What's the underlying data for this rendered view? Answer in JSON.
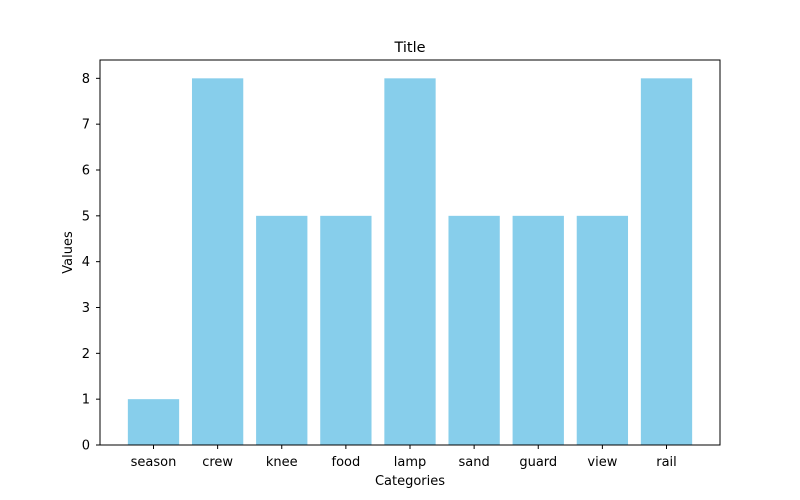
{
  "chart_data": {
    "type": "bar",
    "title": "Title",
    "xlabel": "Categories",
    "ylabel": "Values",
    "categories": [
      "season",
      "crew",
      "knee",
      "food",
      "lamp",
      "sand",
      "guard",
      "view",
      "rail"
    ],
    "values": [
      1,
      8,
      5,
      5,
      8,
      5,
      5,
      5,
      8
    ],
    "ylim": [
      0,
      8.4
    ],
    "yticks": [
      0,
      1,
      2,
      3,
      4,
      5,
      6,
      7,
      8
    ],
    "bar_color": "#87CEEB",
    "grid": false,
    "legend": "none"
  }
}
